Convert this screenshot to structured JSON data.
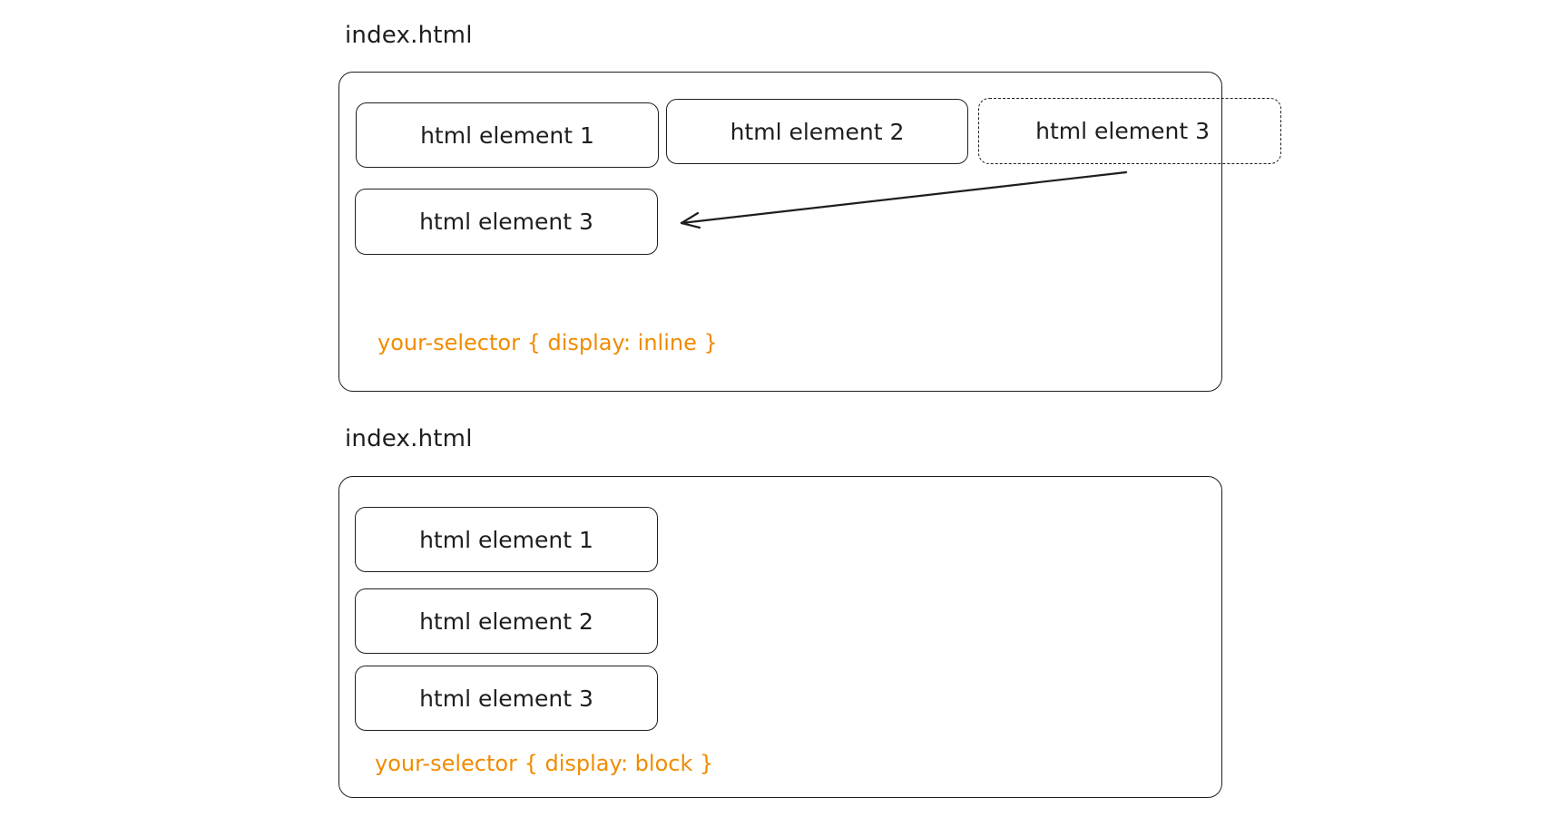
{
  "diagrams": [
    {
      "file_label": "index.html",
      "elements": [
        "html element 1",
        "html element 2",
        "html element 3"
      ],
      "ghost_element": "html element 3",
      "css_rule": "your-selector { display: inline }"
    },
    {
      "file_label": "index.html",
      "elements": [
        "html element 1",
        "html element 2",
        "html element 3"
      ],
      "css_rule": "your-selector { display: block }"
    }
  ],
  "colors": {
    "stroke": "#1e1e1e",
    "accent": "#f08c00",
    "background": "#ffffff"
  }
}
